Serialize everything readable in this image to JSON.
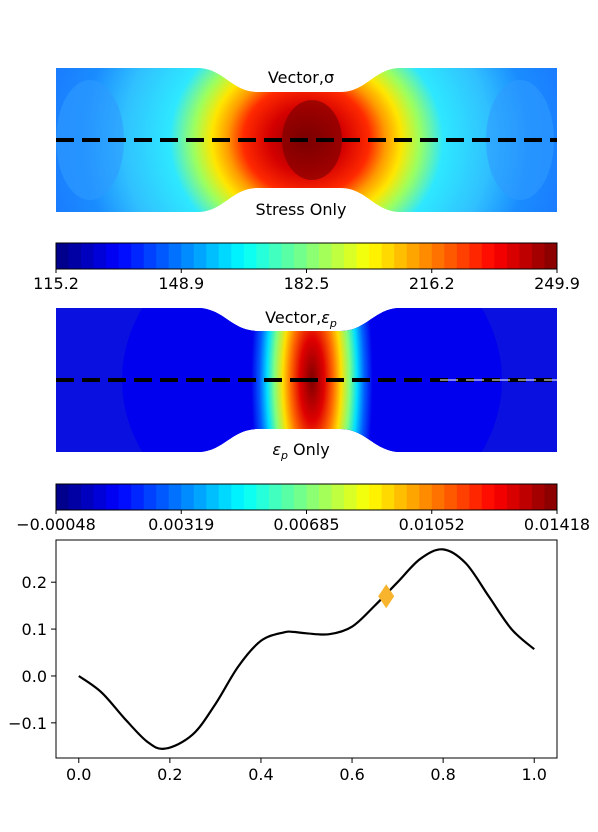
{
  "stress_panel": {
    "label_top": "Vector,σ",
    "label_bottom": "Stress Only",
    "colorbar_ticks": [
      "115.2",
      "148.9",
      "182.5",
      "216.2",
      "249.9"
    ],
    "colorbar_range": [
      115.2,
      249.9
    ]
  },
  "strain_panel": {
    "label_top_main": "Vector,",
    "label_top_symbol": "ε",
    "label_top_sub": "p",
    "label_bottom_symbol": "ε",
    "label_bottom_sub": "p",
    "label_bottom_main": " Only",
    "colorbar_ticks": [
      "−0.00048",
      "0.00319",
      "0.00685",
      "0.01052",
      "0.01418"
    ],
    "colorbar_range": [
      -0.00048,
      0.01418
    ]
  },
  "colors": {
    "jet": [
      "#00007f",
      "#0000ff",
      "#007fff",
      "#00ffff",
      "#7fff7f",
      "#ffff00",
      "#ff7f00",
      "#ff0000",
      "#7f0000"
    ],
    "curve": "#000000",
    "marker": "#f7b42c"
  },
  "chart_data": {
    "type": "line",
    "xlim": [
      -0.05,
      1.05
    ],
    "ylim": [
      -0.175,
      0.29
    ],
    "x_ticks": [
      "0.0",
      "0.2",
      "0.4",
      "0.6",
      "0.8",
      "1.0"
    ],
    "y_ticks": [
      "−0.1",
      "0.0",
      "0.1",
      "0.2"
    ],
    "x_tick_values": [
      0.0,
      0.2,
      0.4,
      0.6,
      0.8,
      1.0
    ],
    "y_tick_values": [
      -0.1,
      0.0,
      0.1,
      0.2
    ],
    "grid": false,
    "series": [
      {
        "x": [
          0.0,
          0.05,
          0.1,
          0.15,
          0.19,
          0.25,
          0.3,
          0.35,
          0.4,
          0.45,
          0.47,
          0.5,
          0.55,
          0.6,
          0.65,
          0.7,
          0.75,
          0.8,
          0.85,
          0.9,
          0.95,
          1.0
        ],
        "y": [
          0.0,
          -0.035,
          -0.09,
          -0.14,
          -0.155,
          -0.125,
          -0.06,
          0.02,
          0.075,
          0.093,
          0.094,
          0.091,
          0.089,
          0.105,
          0.15,
          0.2,
          0.25,
          0.27,
          0.24,
          0.17,
          0.1,
          0.057
        ]
      }
    ],
    "marker_point": {
      "x": 0.675,
      "y": 0.17,
      "shape": "diamond"
    }
  }
}
